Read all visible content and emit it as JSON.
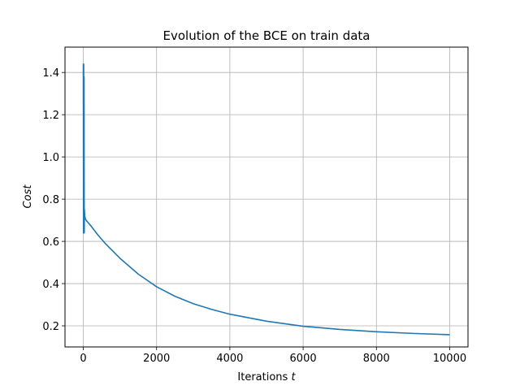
{
  "chart_data": {
    "type": "line",
    "title": "Evolution of the BCE on train data",
    "xlabel": "Iterations ",
    "xlabel_var": "t",
    "ylabel": "Cost",
    "xlim": [
      -500,
      10500
    ],
    "ylim": [
      0.1,
      1.52
    ],
    "xticks": [
      0,
      2000,
      4000,
      6000,
      8000,
      10000
    ],
    "yticks": [
      0.2,
      0.4,
      0.6,
      0.8,
      1.0,
      1.2,
      1.4
    ],
    "xtick_labels": [
      "0",
      "2000",
      "4000",
      "6000",
      "8000",
      "10000"
    ],
    "ytick_labels": [
      "0.2",
      "0.4",
      "0.6",
      "0.8",
      "1.0",
      "1.2",
      "1.4"
    ],
    "grid": true,
    "line_color": "#1f77b4",
    "series": [
      {
        "x": [
          0,
          5,
          10,
          15,
          20,
          25,
          30,
          40,
          60,
          100,
          200,
          400,
          600,
          800,
          1000,
          1500,
          2000,
          2500,
          3000,
          3500,
          4000,
          5000,
          6000,
          7000,
          8000,
          9000,
          10000
        ],
        "values": [
          1.44,
          0.64,
          1.44,
          0.64,
          1.38,
          0.64,
          0.75,
          0.72,
          0.705,
          0.695,
          0.675,
          0.63,
          0.59,
          0.555,
          0.52,
          0.445,
          0.385,
          0.34,
          0.305,
          0.278,
          0.255,
          0.222,
          0.198,
          0.183,
          0.172,
          0.164,
          0.158
        ]
      }
    ]
  }
}
